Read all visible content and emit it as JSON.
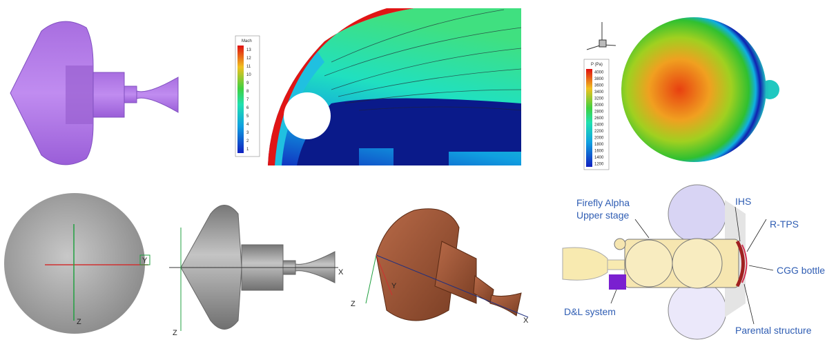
{
  "mach_plot": {
    "colorbar_title": "Mach",
    "colorbar_labels": [
      "13",
      "12",
      "11",
      "10",
      "9",
      "8",
      "7",
      "6",
      "5",
      "4",
      "3",
      "2",
      "1"
    ]
  },
  "pressure_plot": {
    "colorbar_title": "P (Pa)",
    "colorbar_labels": [
      "4000",
      "3800",
      "3600",
      "3400",
      "3200",
      "3000",
      "2800",
      "2600",
      "2400",
      "2200",
      "2000",
      "1800",
      "1600",
      "1400",
      "1200"
    ]
  },
  "axes": {
    "sphere_y": "Y",
    "sphere_z": "Z",
    "side_x": "X",
    "side_z": "Z",
    "iso_z": "Z",
    "iso_y": "Y",
    "iso_x": "X"
  },
  "layout_labels": {
    "upper_stage": [
      "Firefly Alpha",
      "Upper stage"
    ],
    "ihs": "IHS",
    "rtps": "R-TPS",
    "cgg": "CGG bottle",
    "dl": "D&L system",
    "parental": "Parental structure"
  }
}
